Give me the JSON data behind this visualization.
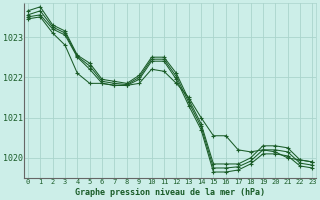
{
  "title": "Graphe pression niveau de la mer (hPa)",
  "ylim": [
    1019.5,
    1023.85
  ],
  "yticks": [
    1020,
    1021,
    1022,
    1023
  ],
  "background_color": "#cceee8",
  "grid_color": "#aad4cc",
  "line_color": "#1a5c28",
  "line1": [
    1023.65,
    1023.75,
    1023.3,
    1023.15,
    1022.55,
    1022.35,
    1021.95,
    1021.9,
    1021.85,
    1022.05,
    1022.5,
    1022.5,
    1022.1,
    1021.45,
    1020.85,
    1019.85,
    1019.85,
    1019.85,
    1020.0,
    1020.3,
    1020.3,
    1020.25,
    1019.95,
    1019.9
  ],
  "line2": [
    1023.5,
    1023.55,
    1023.2,
    1023.05,
    1022.5,
    1022.2,
    1021.85,
    1021.8,
    1021.8,
    1021.95,
    1022.4,
    1022.4,
    1021.95,
    1021.3,
    1020.7,
    1019.65,
    1019.65,
    1019.7,
    1019.85,
    1020.1,
    1020.1,
    1020.05,
    1019.8,
    1019.75
  ],
  "line3": [
    1023.55,
    1023.65,
    1023.25,
    1023.1,
    1022.52,
    1022.28,
    1021.9,
    1021.85,
    1021.82,
    1022.0,
    1022.45,
    1022.45,
    1022.02,
    1021.38,
    1020.78,
    1019.75,
    1019.75,
    1019.78,
    1019.92,
    1020.2,
    1020.2,
    1020.15,
    1019.87,
    1019.82
  ],
  "line4": [
    1023.45,
    1023.5,
    1023.1,
    1022.8,
    1022.1,
    1021.85,
    1021.85,
    1021.8,
    1021.8,
    1021.85,
    1022.2,
    1022.15,
    1021.85,
    1021.5,
    1021.0,
    1020.55,
    1020.55,
    1020.2,
    1020.15,
    1020.2,
    1020.15,
    1020.0,
    1019.95,
    1019.9
  ]
}
